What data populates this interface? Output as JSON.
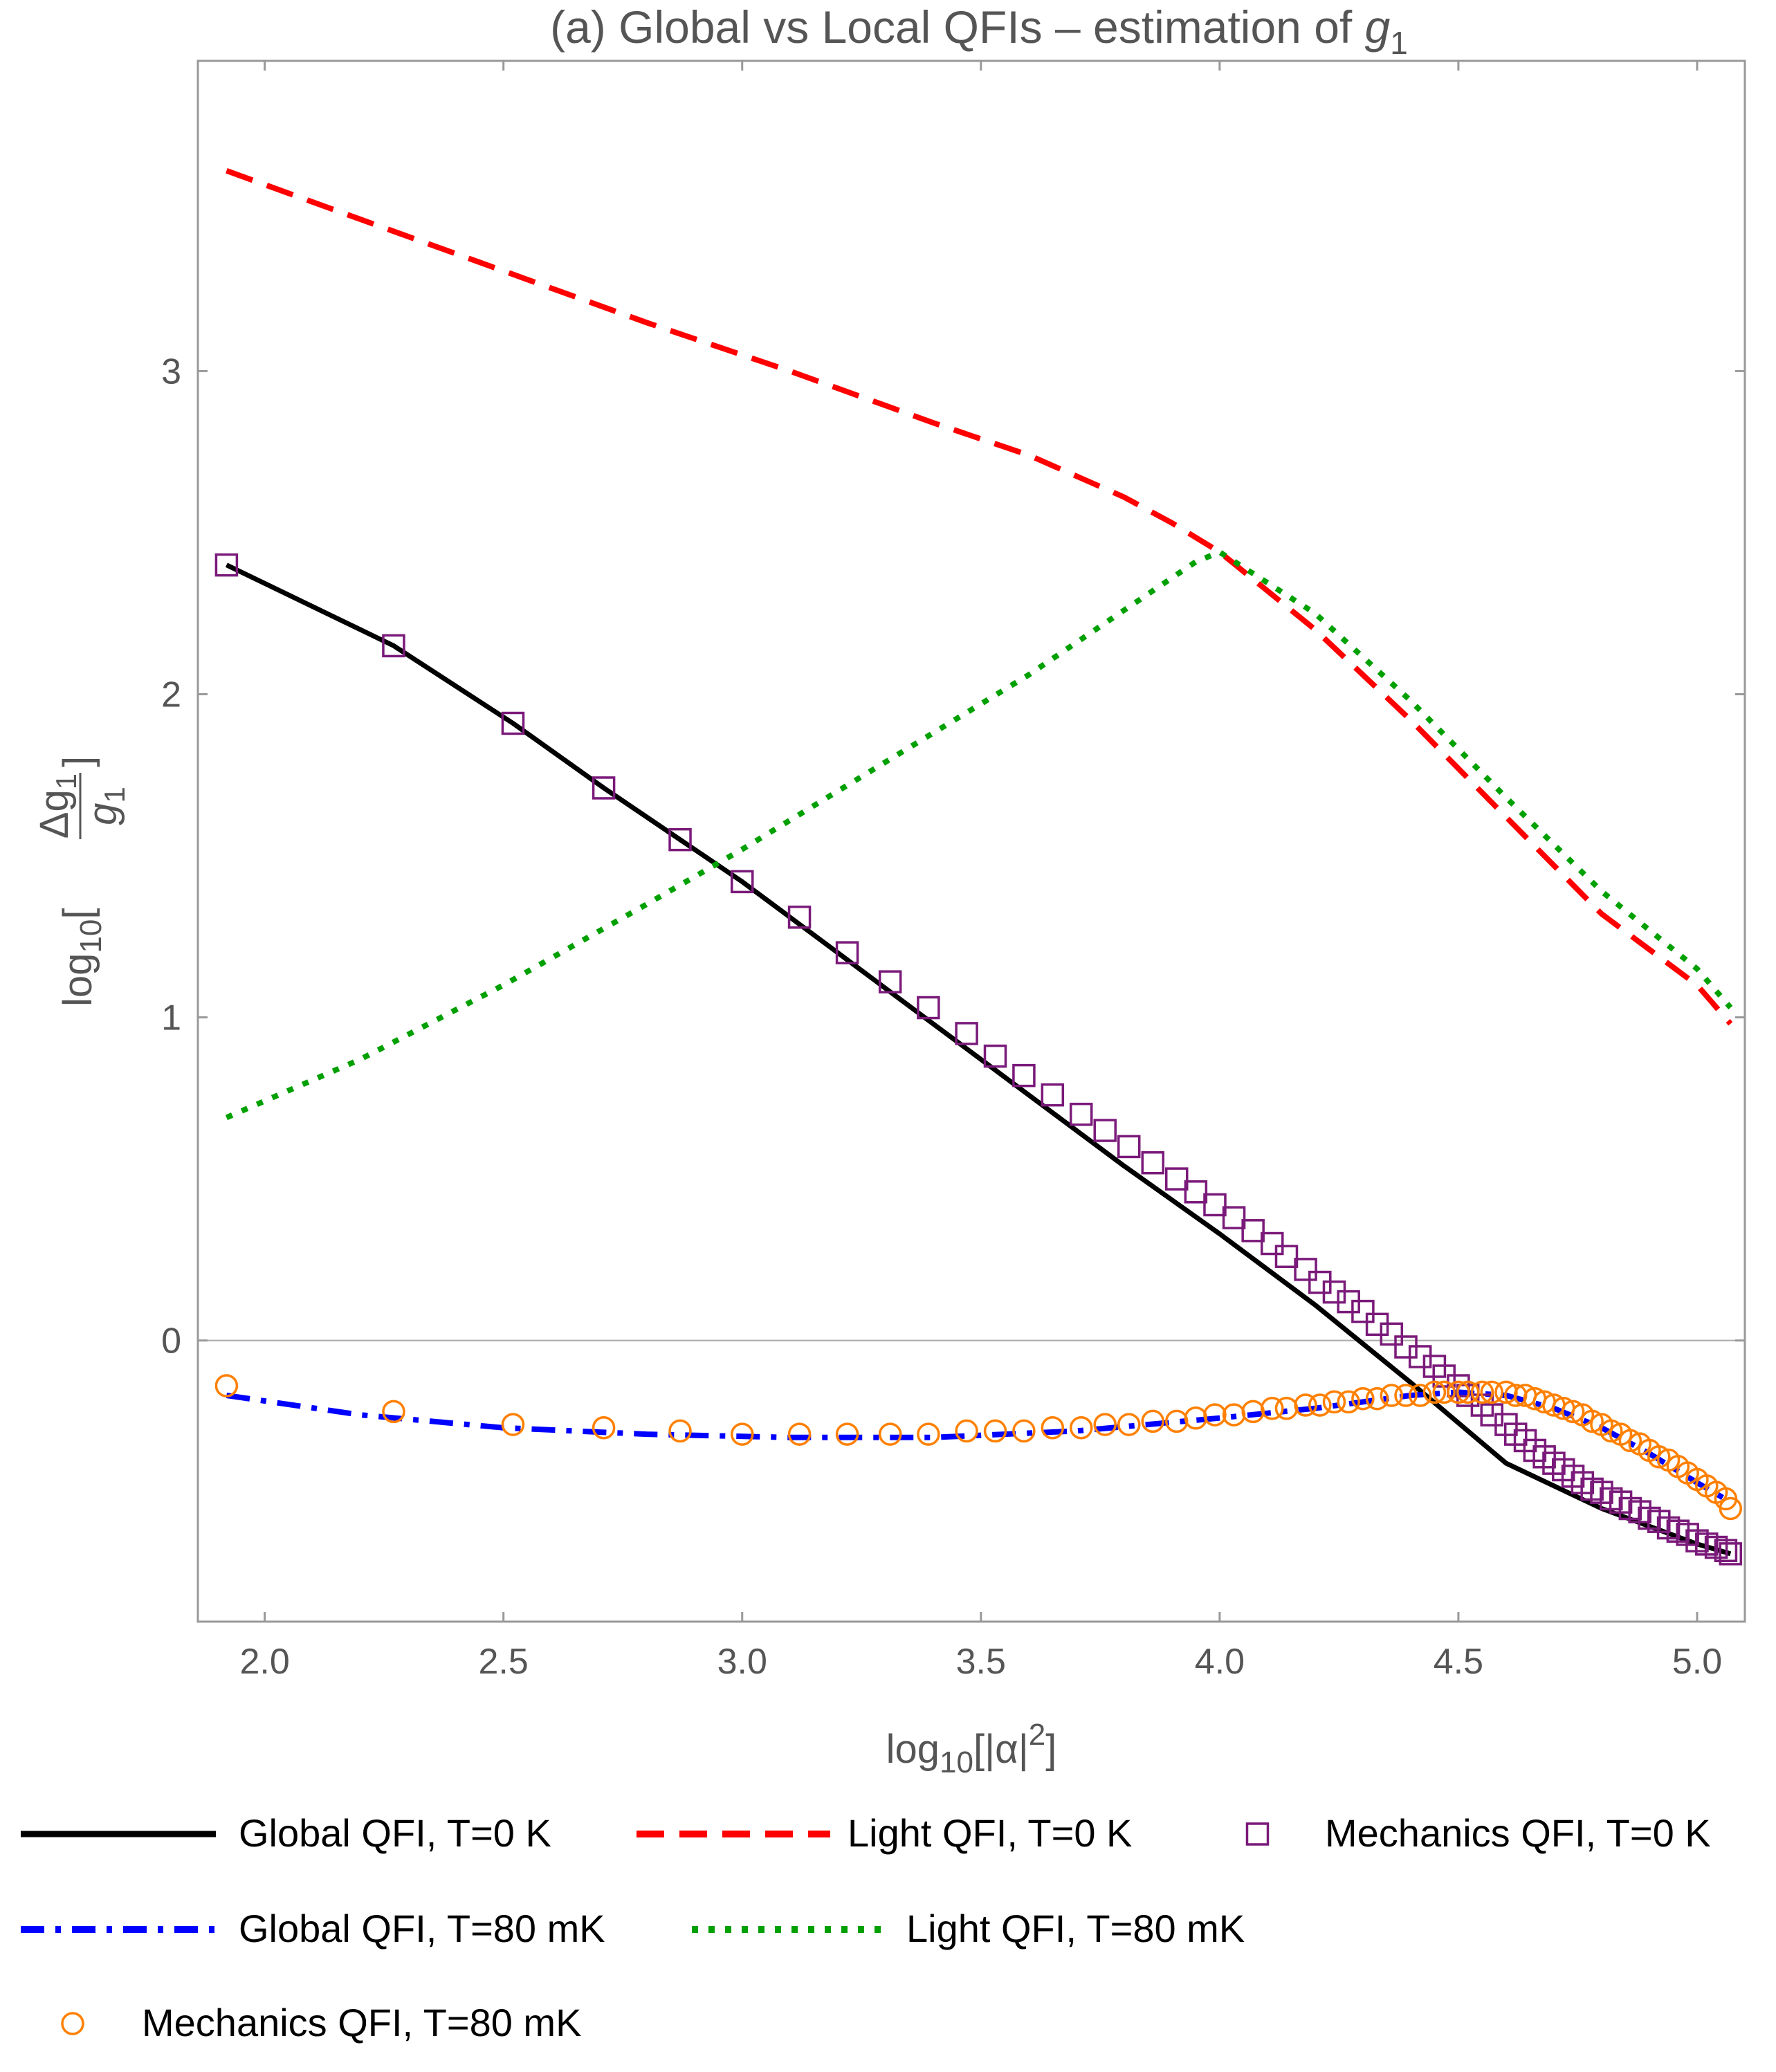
{
  "chart_data": {
    "type": "line",
    "title": "(a) Global vs Local QFIs – estimation of g1",
    "title_main": "(a) Global vs Local QFIs – estimation of ",
    "title_var": "g",
    "title_sub": "1",
    "xlabel": "log10[|α|2]",
    "xlabel_parts": {
      "pre": "log",
      "base": "10",
      "mid": "[|α|",
      "sup": "2",
      "post": "]"
    },
    "ylabel": "log10[Δg1/g1]",
    "ylabel_parts": {
      "pre": "log",
      "base": "10",
      "open": "[",
      "num": "Δg",
      "num_sub": "1",
      "den": "g",
      "den_sub": "1",
      "close": "]"
    },
    "xlim": [
      1.86,
      5.1
    ],
    "ylim": [
      -0.87,
      3.96
    ],
    "x_ticks": [
      2.0,
      2.5,
      3.0,
      3.5,
      4.0,
      4.5,
      5.0
    ],
    "x_tick_labels": [
      "2.0",
      "2.5",
      "3.0",
      "3.5",
      "4.0",
      "4.5",
      "5.0"
    ],
    "y_ticks": [
      0,
      1,
      2,
      3
    ],
    "y_tick_labels": [
      "0",
      "1",
      "2",
      "3"
    ],
    "grid": false,
    "zero_line": true,
    "legend_position": "bottom",
    "series": [
      {
        "name": "Global QFI, T=0 K",
        "style": "solid",
        "color": "#000000",
        "x": [
          1.92,
          2.27,
          2.52,
          2.71,
          2.87,
          3.0,
          3.2,
          3.4,
          3.6,
          3.8,
          4.0,
          4.2,
          4.4,
          4.6,
          4.8,
          5.0,
          5.07
        ],
        "y": [
          2.4,
          2.15,
          1.91,
          1.71,
          1.55,
          1.42,
          1.2,
          0.98,
          0.76,
          0.54,
          0.33,
          0.11,
          -0.13,
          -0.38,
          -0.52,
          -0.63,
          -0.66
        ]
      },
      {
        "name": "Light QFI, T=0 K",
        "style": "dashed",
        "color": "#ff0000",
        "x": [
          1.92,
          2.2,
          2.5,
          2.8,
          3.1,
          3.4,
          3.6,
          3.8,
          3.9,
          4.0,
          4.2,
          4.4,
          4.6,
          4.8,
          5.0,
          5.07
        ],
        "y": [
          3.62,
          3.47,
          3.31,
          3.15,
          3.0,
          2.84,
          2.74,
          2.61,
          2.53,
          2.44,
          2.2,
          1.92,
          1.62,
          1.32,
          1.1,
          0.98
        ]
      },
      {
        "name": "Mechanics QFI, T=0 K",
        "style": "marker-square",
        "color": "#7a1a7a",
        "x": [
          1.92,
          2.27,
          2.52,
          2.71,
          2.87,
          3.0,
          3.12,
          3.22,
          3.31,
          3.39,
          3.47,
          3.53,
          3.59,
          3.65,
          3.71,
          3.76,
          3.81,
          3.86,
          3.91,
          3.95,
          3.99,
          4.03,
          4.07,
          4.11,
          4.14,
          4.18,
          4.21,
          4.24,
          4.27,
          4.3,
          4.33,
          4.36,
          4.39,
          4.42,
          4.45,
          4.47,
          4.5,
          4.52,
          4.55,
          4.57,
          4.6,
          4.62,
          4.64,
          4.66,
          4.68,
          4.7,
          4.72,
          4.74,
          4.76,
          4.78,
          4.8,
          4.82,
          4.84,
          4.86,
          4.88,
          4.9,
          4.92,
          4.94,
          4.96,
          4.98,
          5.0,
          5.02,
          5.04,
          5.06,
          5.07
        ],
        "y": [
          2.4,
          2.15,
          1.91,
          1.71,
          1.55,
          1.42,
          1.31,
          1.2,
          1.11,
          1.03,
          0.95,
          0.88,
          0.82,
          0.76,
          0.7,
          0.65,
          0.6,
          0.55,
          0.5,
          0.46,
          0.42,
          0.38,
          0.34,
          0.3,
          0.26,
          0.22,
          0.18,
          0.15,
          0.12,
          0.09,
          0.05,
          0.02,
          -0.02,
          -0.05,
          -0.08,
          -0.11,
          -0.14,
          -0.17,
          -0.2,
          -0.23,
          -0.26,
          -0.29,
          -0.31,
          -0.34,
          -0.36,
          -0.38,
          -0.4,
          -0.42,
          -0.44,
          -0.46,
          -0.47,
          -0.49,
          -0.5,
          -0.52,
          -0.53,
          -0.55,
          -0.56,
          -0.58,
          -0.59,
          -0.6,
          -0.62,
          -0.63,
          -0.64,
          -0.65,
          -0.66
        ]
      },
      {
        "name": "Global QFI, T=80 mK",
        "style": "dashdot",
        "color": "#0000ff",
        "x": [
          1.92,
          2.2,
          2.5,
          2.8,
          3.1,
          3.4,
          3.7,
          4.0,
          4.2,
          4.4,
          4.5,
          4.6,
          4.7,
          4.8,
          4.9,
          5.0,
          5.07
        ],
        "y": [
          -0.17,
          -0.23,
          -0.27,
          -0.29,
          -0.3,
          -0.3,
          -0.28,
          -0.24,
          -0.21,
          -0.17,
          -0.16,
          -0.17,
          -0.21,
          -0.27,
          -0.35,
          -0.44,
          -0.5
        ]
      },
      {
        "name": "Light QFI, T=80 mK",
        "style": "dotted",
        "color": "#00a000",
        "x": [
          1.92,
          2.2,
          2.5,
          2.8,
          3.0,
          3.2,
          3.4,
          3.6,
          3.8,
          3.95,
          4.0,
          4.2,
          4.4,
          4.6,
          4.8,
          5.0,
          5.07
        ],
        "y": [
          0.69,
          0.87,
          1.1,
          1.35,
          1.52,
          1.7,
          1.88,
          2.06,
          2.26,
          2.41,
          2.44,
          2.25,
          1.98,
          1.68,
          1.39,
          1.15,
          1.03
        ]
      },
      {
        "name": "Mechanics QFI, T=80 mK",
        "style": "marker-circle",
        "color": "#ff8000",
        "x": [
          1.92,
          2.27,
          2.52,
          2.71,
          2.87,
          3.0,
          3.12,
          3.22,
          3.31,
          3.39,
          3.47,
          3.53,
          3.59,
          3.65,
          3.71,
          3.76,
          3.81,
          3.86,
          3.91,
          3.95,
          3.99,
          4.03,
          4.07,
          4.11,
          4.14,
          4.18,
          4.21,
          4.24,
          4.27,
          4.3,
          4.33,
          4.36,
          4.39,
          4.42,
          4.45,
          4.47,
          4.5,
          4.52,
          4.55,
          4.57,
          4.6,
          4.62,
          4.64,
          4.66,
          4.68,
          4.7,
          4.72,
          4.74,
          4.76,
          4.78,
          4.8,
          4.82,
          4.84,
          4.86,
          4.88,
          4.9,
          4.92,
          4.94,
          4.96,
          4.98,
          5.0,
          5.02,
          5.04,
          5.06,
          5.07
        ],
        "y": [
          -0.14,
          -0.22,
          -0.26,
          -0.27,
          -0.28,
          -0.29,
          -0.29,
          -0.29,
          -0.29,
          -0.29,
          -0.28,
          -0.28,
          -0.28,
          -0.27,
          -0.27,
          -0.26,
          -0.26,
          -0.25,
          -0.25,
          -0.24,
          -0.23,
          -0.23,
          -0.22,
          -0.21,
          -0.21,
          -0.2,
          -0.2,
          -0.19,
          -0.19,
          -0.18,
          -0.18,
          -0.17,
          -0.17,
          -0.17,
          -0.16,
          -0.16,
          -0.16,
          -0.16,
          -0.16,
          -0.16,
          -0.16,
          -0.17,
          -0.17,
          -0.18,
          -0.19,
          -0.2,
          -0.21,
          -0.22,
          -0.23,
          -0.25,
          -0.26,
          -0.28,
          -0.29,
          -0.31,
          -0.32,
          -0.34,
          -0.36,
          -0.37,
          -0.39,
          -0.41,
          -0.43,
          -0.45,
          -0.47,
          -0.49,
          -0.52
        ]
      }
    ]
  }
}
